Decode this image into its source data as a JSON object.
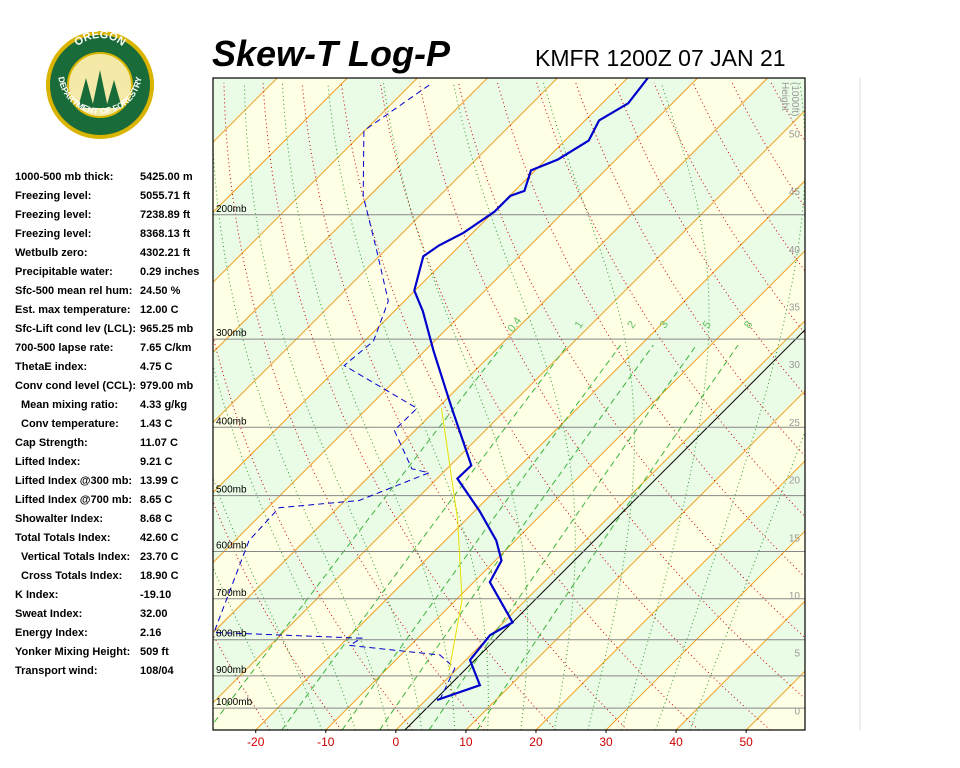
{
  "logo": {
    "top": "OREGON",
    "bottom": "DEPARTMENT OF FORESTRY"
  },
  "title": "Skew-T Log-P",
  "station": "KMFR 1200Z 07 JAN 21",
  "indices": [
    [
      "1000-500 mb thick:",
      "5425.00 m"
    ],
    [
      "Freezing level:",
      "5055.71 ft"
    ],
    [
      "Freezing level:",
      "7238.89 ft"
    ],
    [
      "Freezing level:",
      "8368.13 ft"
    ],
    [
      "Wetbulb zero:",
      "4302.21 ft"
    ],
    [
      "Precipitable water:",
      "0.29 inches"
    ],
    [
      "Sfc-500 mean rel hum:",
      "24.50 %"
    ],
    [
      "Est. max temperature:",
      "12.00 C"
    ],
    [
      "Sfc-Lift cond lev (LCL):",
      "965.25 mb"
    ],
    [
      "700-500 lapse rate:",
      "7.65 C/km"
    ],
    [
      "ThetaE index:",
      "4.75 C"
    ],
    [
      "Conv cond level (CCL):",
      "979.00 mb"
    ],
    [
      "Mean mixing ratio:",
      "4.33 g/kg"
    ],
    [
      "Conv temperature:",
      "1.43 C"
    ],
    [
      "Cap Strength:",
      "11.07 C"
    ],
    [
      "Lifted Index:",
      "9.21 C"
    ],
    [
      "Lifted Index @300 mb:",
      "13.99 C"
    ],
    [
      "Lifted Index @700 mb:",
      "8.65 C"
    ],
    [
      "Showalter Index:",
      "8.68 C"
    ],
    [
      "Total Totals Index:",
      "42.60 C"
    ],
    [
      "Vertical Totals Index:",
      "23.70 C"
    ],
    [
      "Cross Totals Index:",
      "18.90 C"
    ],
    [
      "K Index:",
      "-19.10"
    ],
    [
      "Sweat Index:",
      "32.00"
    ],
    [
      "Energy Index:",
      "2.16"
    ],
    [
      "Yonker Mixing Height:",
      "509 ft"
    ],
    [
      "Transport wind:",
      "108/04"
    ]
  ],
  "chart_data": {
    "type": "skewt",
    "xlim": [
      -26.1,
      58.4
    ],
    "xticks": [
      -20,
      -10,
      0,
      10,
      20,
      30,
      40,
      50
    ],
    "plim": [
      1074,
      128
    ],
    "pticks": [
      {
        "value": 200,
        "label": "200mb"
      },
      {
        "value": 300,
        "label": "300mb"
      },
      {
        "value": 400,
        "label": "400mb"
      },
      {
        "value": 500,
        "label": "500mb"
      },
      {
        "value": 600,
        "label": "600mb"
      },
      {
        "value": 700,
        "label": "700mb"
      },
      {
        "value": 800,
        "label": "800mb"
      },
      {
        "value": 900,
        "label": "900mb"
      },
      {
        "value": 1000,
        "label": "1000mb"
      }
    ],
    "hlim": [
      -1.7,
      54.8
    ],
    "hticks": [
      0,
      5,
      10,
      15,
      20,
      25,
      30,
      35,
      40,
      45,
      50
    ],
    "height_label": [
      "Height",
      "(1000ft)"
    ],
    "mixing_ratios": [
      0.4,
      1,
      2,
      3,
      5,
      8
    ],
    "series": [
      {
        "name": "Temperature",
        "color": "#0000cc",
        "pressure": [
          974,
          928,
          855,
          788,
          756,
          663,
          618,
          579,
          525,
          473,
          453,
          373,
          312,
          274,
          256,
          229,
          221,
          212,
          198,
          188,
          185,
          173,
          167,
          157,
          147,
          139,
          128
        ],
        "values": [
          1.6,
          5.6,
          0.6,
          -0.1,
          1.3,
          -7.7,
          -9.1,
          -12.7,
          -19.4,
          -27.1,
          -27.0,
          -38.4,
          -48.7,
          -55.9,
          -60.1,
          -63.7,
          -63.0,
          -61.3,
          -59.9,
          -59.9,
          -58.6,
          -60.6,
          -58.3,
          -56.6,
          -58.0,
          -56.3,
          -57.1
        ]
      },
      {
        "name": "Dewpoint",
        "color": "#0000cc",
        "pressure": [
          974,
          878,
          841,
          815,
          796,
          781,
          579,
          520,
          508,
          464,
          458,
          404,
          376,
          327,
          302,
          265,
          225,
          188,
          152,
          131
        ],
        "values": [
          2.0,
          -0.4,
          -4.4,
          -18.7,
          -18.0,
          -39.9,
          -48.0,
          -48.4,
          -38.0,
          -32.0,
          -35.0,
          -43.0,
          -42.9,
          -59.4,
          -58.7,
          -62.3,
          -71.1,
          -80.9,
          -90.1,
          -87.3
        ]
      },
      {
        "name": "Parcel",
        "color": "#e8e000",
        "pressure": [
          884,
          703,
          542,
          376
        ],
        "values": [
          -0.9,
          -9.1,
          -21.1,
          -39.4
        ]
      }
    ]
  }
}
